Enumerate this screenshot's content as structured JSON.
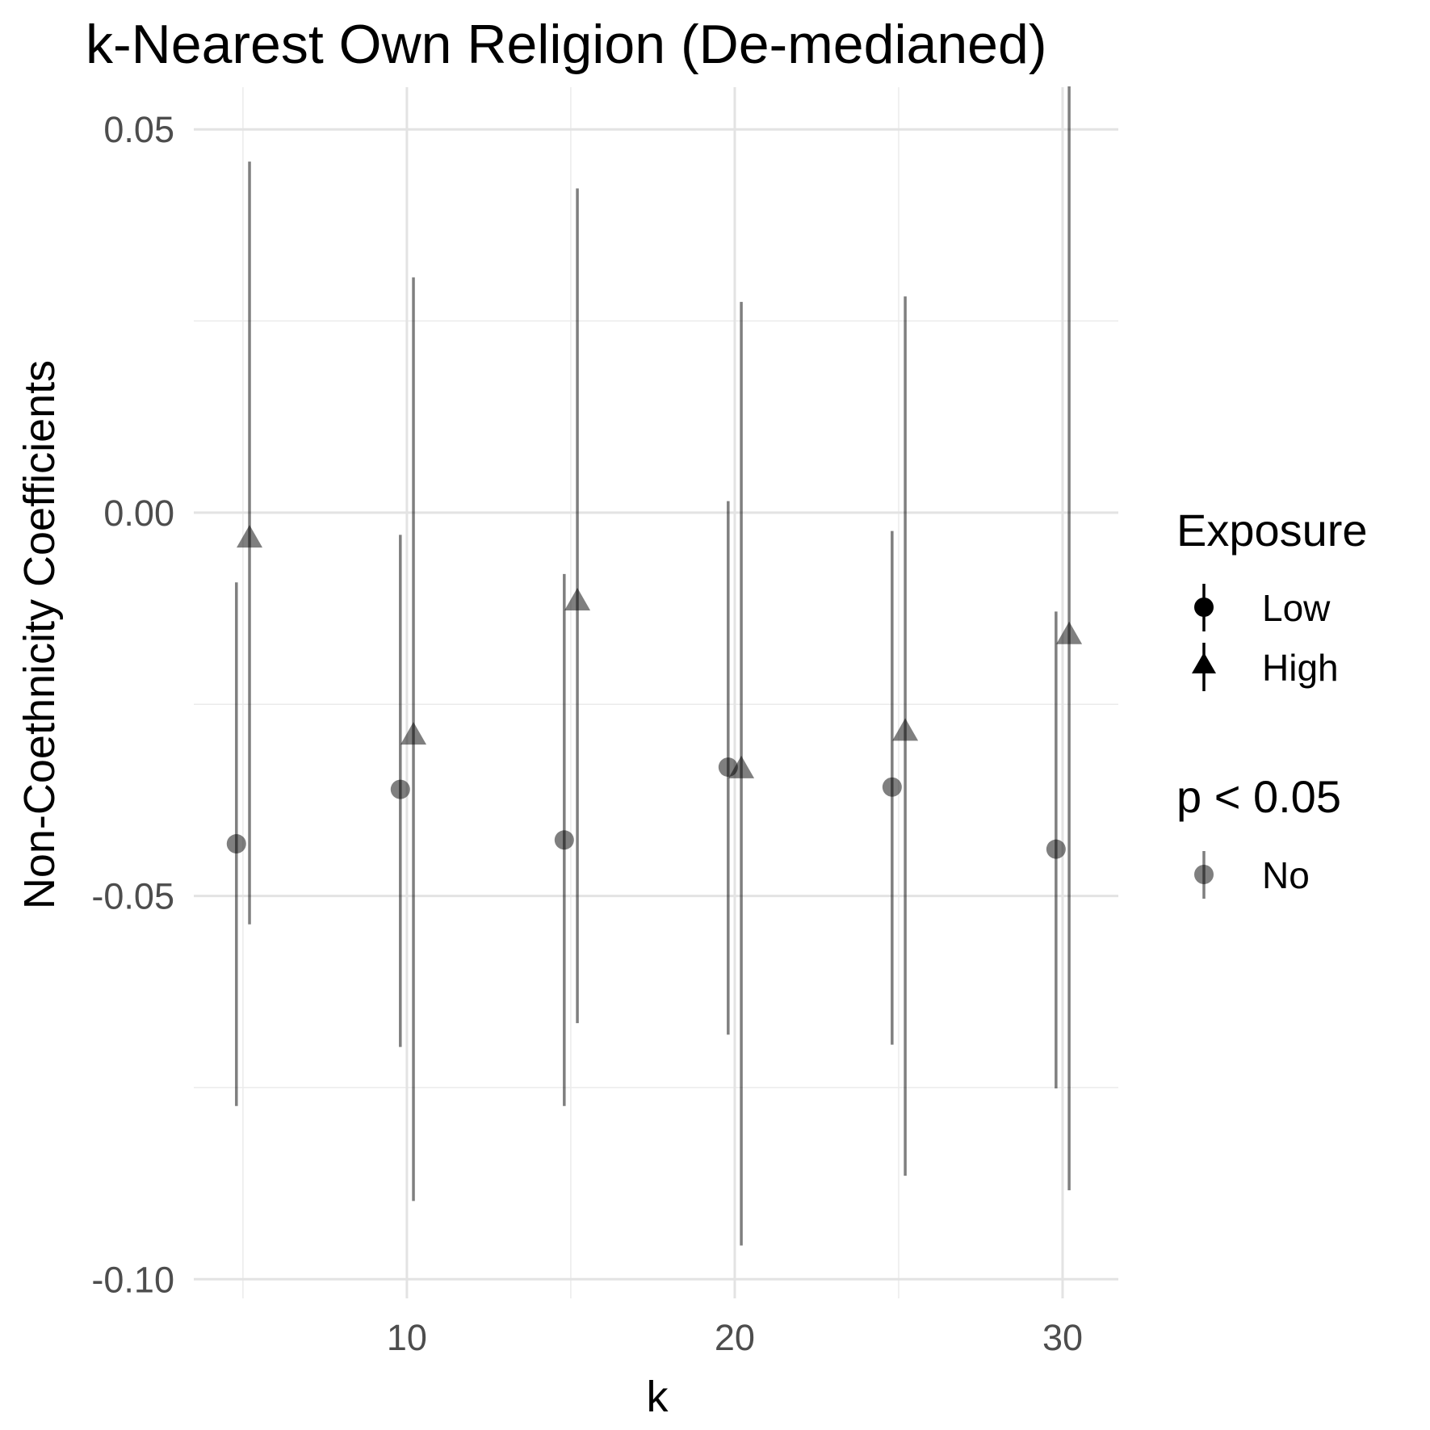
{
  "chart_data": {
    "type": "scatter",
    "title": "k-Nearest Own Religion (De-medianed)",
    "xlabel": "k",
    "ylabel": "Non-Coethnicity Coefficients",
    "xlim": [
      3.5,
      31.7
    ],
    "ylim": [
      -0.1025,
      0.0555
    ],
    "x_ticks": [
      10,
      20,
      30
    ],
    "x_tick_labels": [
      "10",
      "20",
      "30"
    ],
    "x_minor_ticks": [
      5,
      15,
      25
    ],
    "y_ticks": [
      0.05,
      0.0,
      -0.05,
      -0.1
    ],
    "y_tick_labels": [
      "0.05",
      "0.00",
      "-0.05",
      "-0.10"
    ],
    "y_minor_ticks": [
      0.025,
      -0.025,
      -0.075
    ],
    "grid": true,
    "point_color": "#000000",
    "point_alpha": 0.5,
    "series": [
      {
        "name": "Low",
        "shape": "circle",
        "points": [
          {
            "k": 4.8,
            "estimate": -0.0432,
            "lower": -0.0774,
            "upper": -0.0091
          },
          {
            "k": 9.8,
            "estimate": -0.0361,
            "lower": -0.0697,
            "upper": -0.0029
          },
          {
            "k": 14.8,
            "estimate": -0.0427,
            "lower": -0.0774,
            "upper": -0.008
          },
          {
            "k": 19.8,
            "estimate": -0.0332,
            "lower": -0.0681,
            "upper": 0.0015
          },
          {
            "k": 24.8,
            "estimate": -0.0358,
            "lower": -0.0694,
            "upper": -0.0024
          },
          {
            "k": 29.8,
            "estimate": -0.0439,
            "lower": -0.0751,
            "upper": -0.0129
          }
        ]
      },
      {
        "name": "High",
        "shape": "triangle",
        "points": [
          {
            "k": 5.2,
            "estimate": -0.0035,
            "lower": -0.0537,
            "upper": 0.0458
          },
          {
            "k": 10.2,
            "estimate": -0.0292,
            "lower": -0.0898,
            "upper": 0.0307
          },
          {
            "k": 15.2,
            "estimate": -0.0117,
            "lower": -0.0666,
            "upper": 0.0423
          },
          {
            "k": 20.2,
            "estimate": -0.0336,
            "lower": -0.0956,
            "upper": 0.0275
          },
          {
            "k": 25.2,
            "estimate": -0.0287,
            "lower": -0.0865,
            "upper": 0.0282
          },
          {
            "k": 30.2,
            "estimate": -0.0161,
            "lower": -0.0884,
            "upper": 0.0556
          }
        ]
      }
    ],
    "legend": {
      "position": "right",
      "groups": [
        {
          "title": "Exposure",
          "entries": [
            {
              "label": "Low",
              "shape": "circle"
            },
            {
              "label": "High",
              "shape": "triangle"
            }
          ]
        },
        {
          "title": "p < 0.05",
          "entries": [
            {
              "label": "No",
              "shape": "circle-faded"
            }
          ]
        }
      ]
    }
  }
}
